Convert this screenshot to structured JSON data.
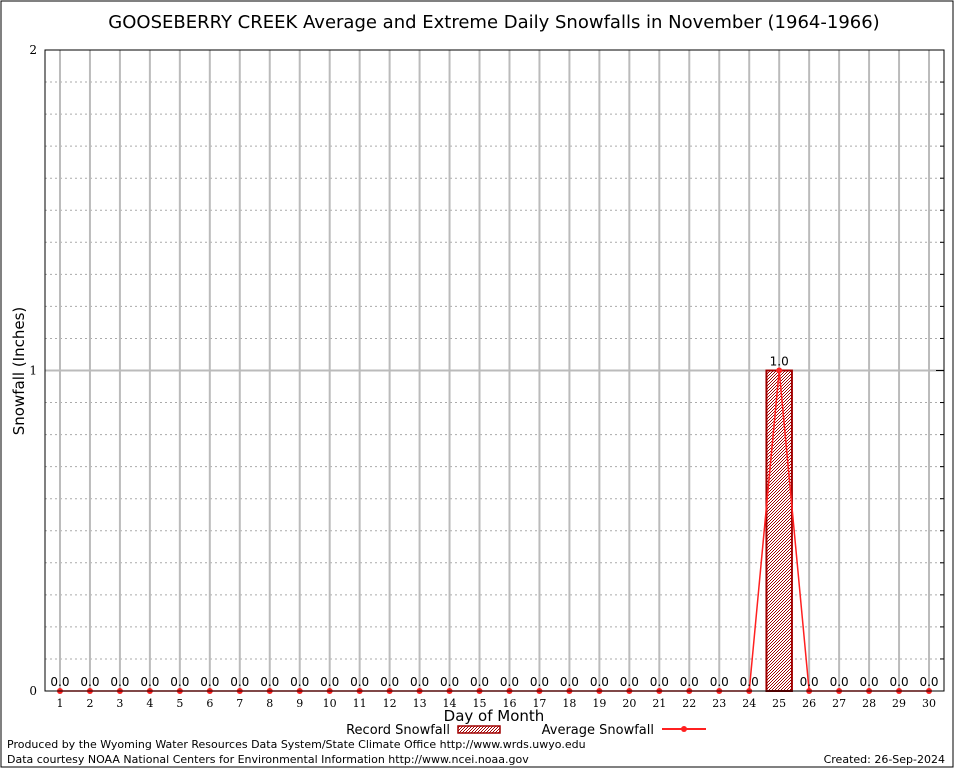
{
  "chart_data": {
    "type": "bar",
    "title": "GOOSEBERRY CREEK Average and Extreme Daily Snowfalls in November (1964-1966)",
    "xlabel": "Day of Month",
    "ylabel": "Snowfall (Inches)",
    "ylim": [
      0,
      2
    ],
    "yticks": [
      "0",
      "1",
      "2"
    ],
    "categories": [
      "1",
      "2",
      "3",
      "4",
      "5",
      "6",
      "7",
      "8",
      "9",
      "10",
      "11",
      "12",
      "13",
      "14",
      "15",
      "16",
      "17",
      "18",
      "19",
      "20",
      "21",
      "22",
      "23",
      "24",
      "25",
      "26",
      "27",
      "28",
      "29",
      "30"
    ],
    "series": [
      {
        "name": "Record Snowfall",
        "type": "bar",
        "color": "#a00000",
        "values": [
          0,
          0,
          0,
          0,
          0,
          0,
          0,
          0,
          0,
          0,
          0,
          0,
          0,
          0,
          0,
          0,
          0,
          0,
          0,
          0,
          0,
          0,
          0,
          0,
          1.0,
          0,
          0,
          0,
          0,
          0
        ]
      },
      {
        "name": "Average Snowfall",
        "type": "line",
        "color": "#ff2020",
        "values": [
          0,
          0,
          0,
          0,
          0,
          0,
          0,
          0,
          0,
          0,
          0,
          0,
          0,
          0,
          0,
          0,
          0,
          0,
          0,
          0,
          0,
          0,
          0,
          0,
          1.0,
          0,
          0,
          0,
          0,
          0
        ]
      }
    ],
    "data_labels": [
      "0.0",
      "0.0",
      "0.0",
      "0.0",
      "0.0",
      "0.0",
      "0.0",
      "0.0",
      "0.0",
      "0.0",
      "0.0",
      "0.0",
      "0.0",
      "0.0",
      "0.0",
      "0.0",
      "0.0",
      "0.0",
      "0.0",
      "0.0",
      "0.0",
      "0.0",
      "0.0",
      "0.0",
      "1.0",
      "0.0",
      "0.0",
      "0.0",
      "0.0",
      "0.0"
    ],
    "grid": true,
    "legend": "bottom"
  },
  "footer": {
    "produced": "Produced by the Wyoming Water Resources Data System/State Climate Office http://www.wrds.uwyo.edu",
    "courtesy": "Data courtesy NOAA National Centers for Environmental Information http://www.ncei.noaa.gov",
    "created": "Created: 26-Sep-2024"
  }
}
